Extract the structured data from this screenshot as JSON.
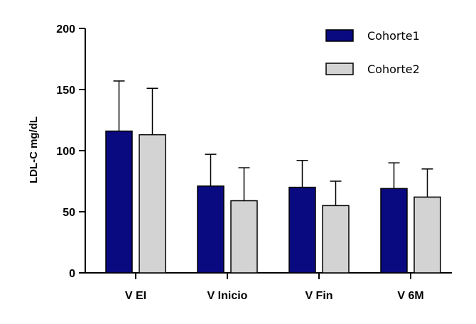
{
  "chart_data": {
    "type": "bar",
    "title": "",
    "xlabel": "",
    "ylabel": "LDL-C mg/dL",
    "ylim": [
      0,
      200
    ],
    "yticks": [
      0,
      50,
      100,
      150,
      200
    ],
    "categories": [
      "V EI",
      "V Inicio",
      "V Fin",
      "V 6M"
    ],
    "series": [
      {
        "name": "Cohorte1",
        "color": "#0a0a80",
        "values": [
          116,
          71,
          70,
          69
        ],
        "error_plus": [
          41,
          26,
          22,
          21
        ]
      },
      {
        "name": "Cohorte2",
        "color": "#d3d3d3",
        "values": [
          113,
          59,
          55,
          62
        ],
        "error_plus": [
          38,
          27,
          20,
          23
        ]
      }
    ],
    "legend_position": "top-right",
    "grid": false
  }
}
